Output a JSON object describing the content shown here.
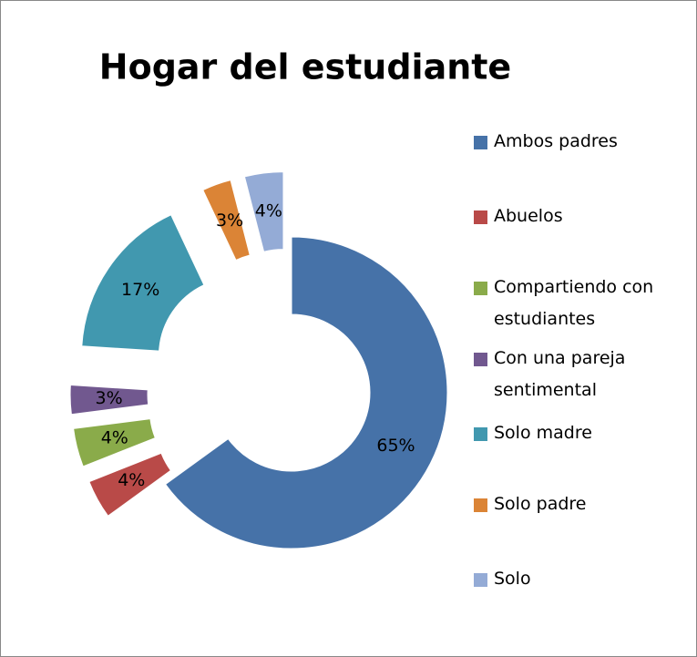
{
  "chart_data": {
    "type": "donut",
    "title": "Hogar del estudiante",
    "categories": [
      "Ambos padres",
      "Abuelos",
      "Compartiendo con estudiantes",
      "Con una pareja sentimental",
      "Solo madre",
      "Solo padre",
      "Solo"
    ],
    "values": [
      65,
      4,
      4,
      3,
      17,
      3,
      4
    ],
    "value_labels": [
      "65%",
      "4%",
      "4%",
      "3%",
      "17%",
      "3%",
      "4%"
    ],
    "colors": [
      "#4672a8",
      "#b94a48",
      "#8aab4a",
      "#71588f",
      "#4198af",
      "#db8436",
      "#94abd6"
    ],
    "legend": "right"
  }
}
